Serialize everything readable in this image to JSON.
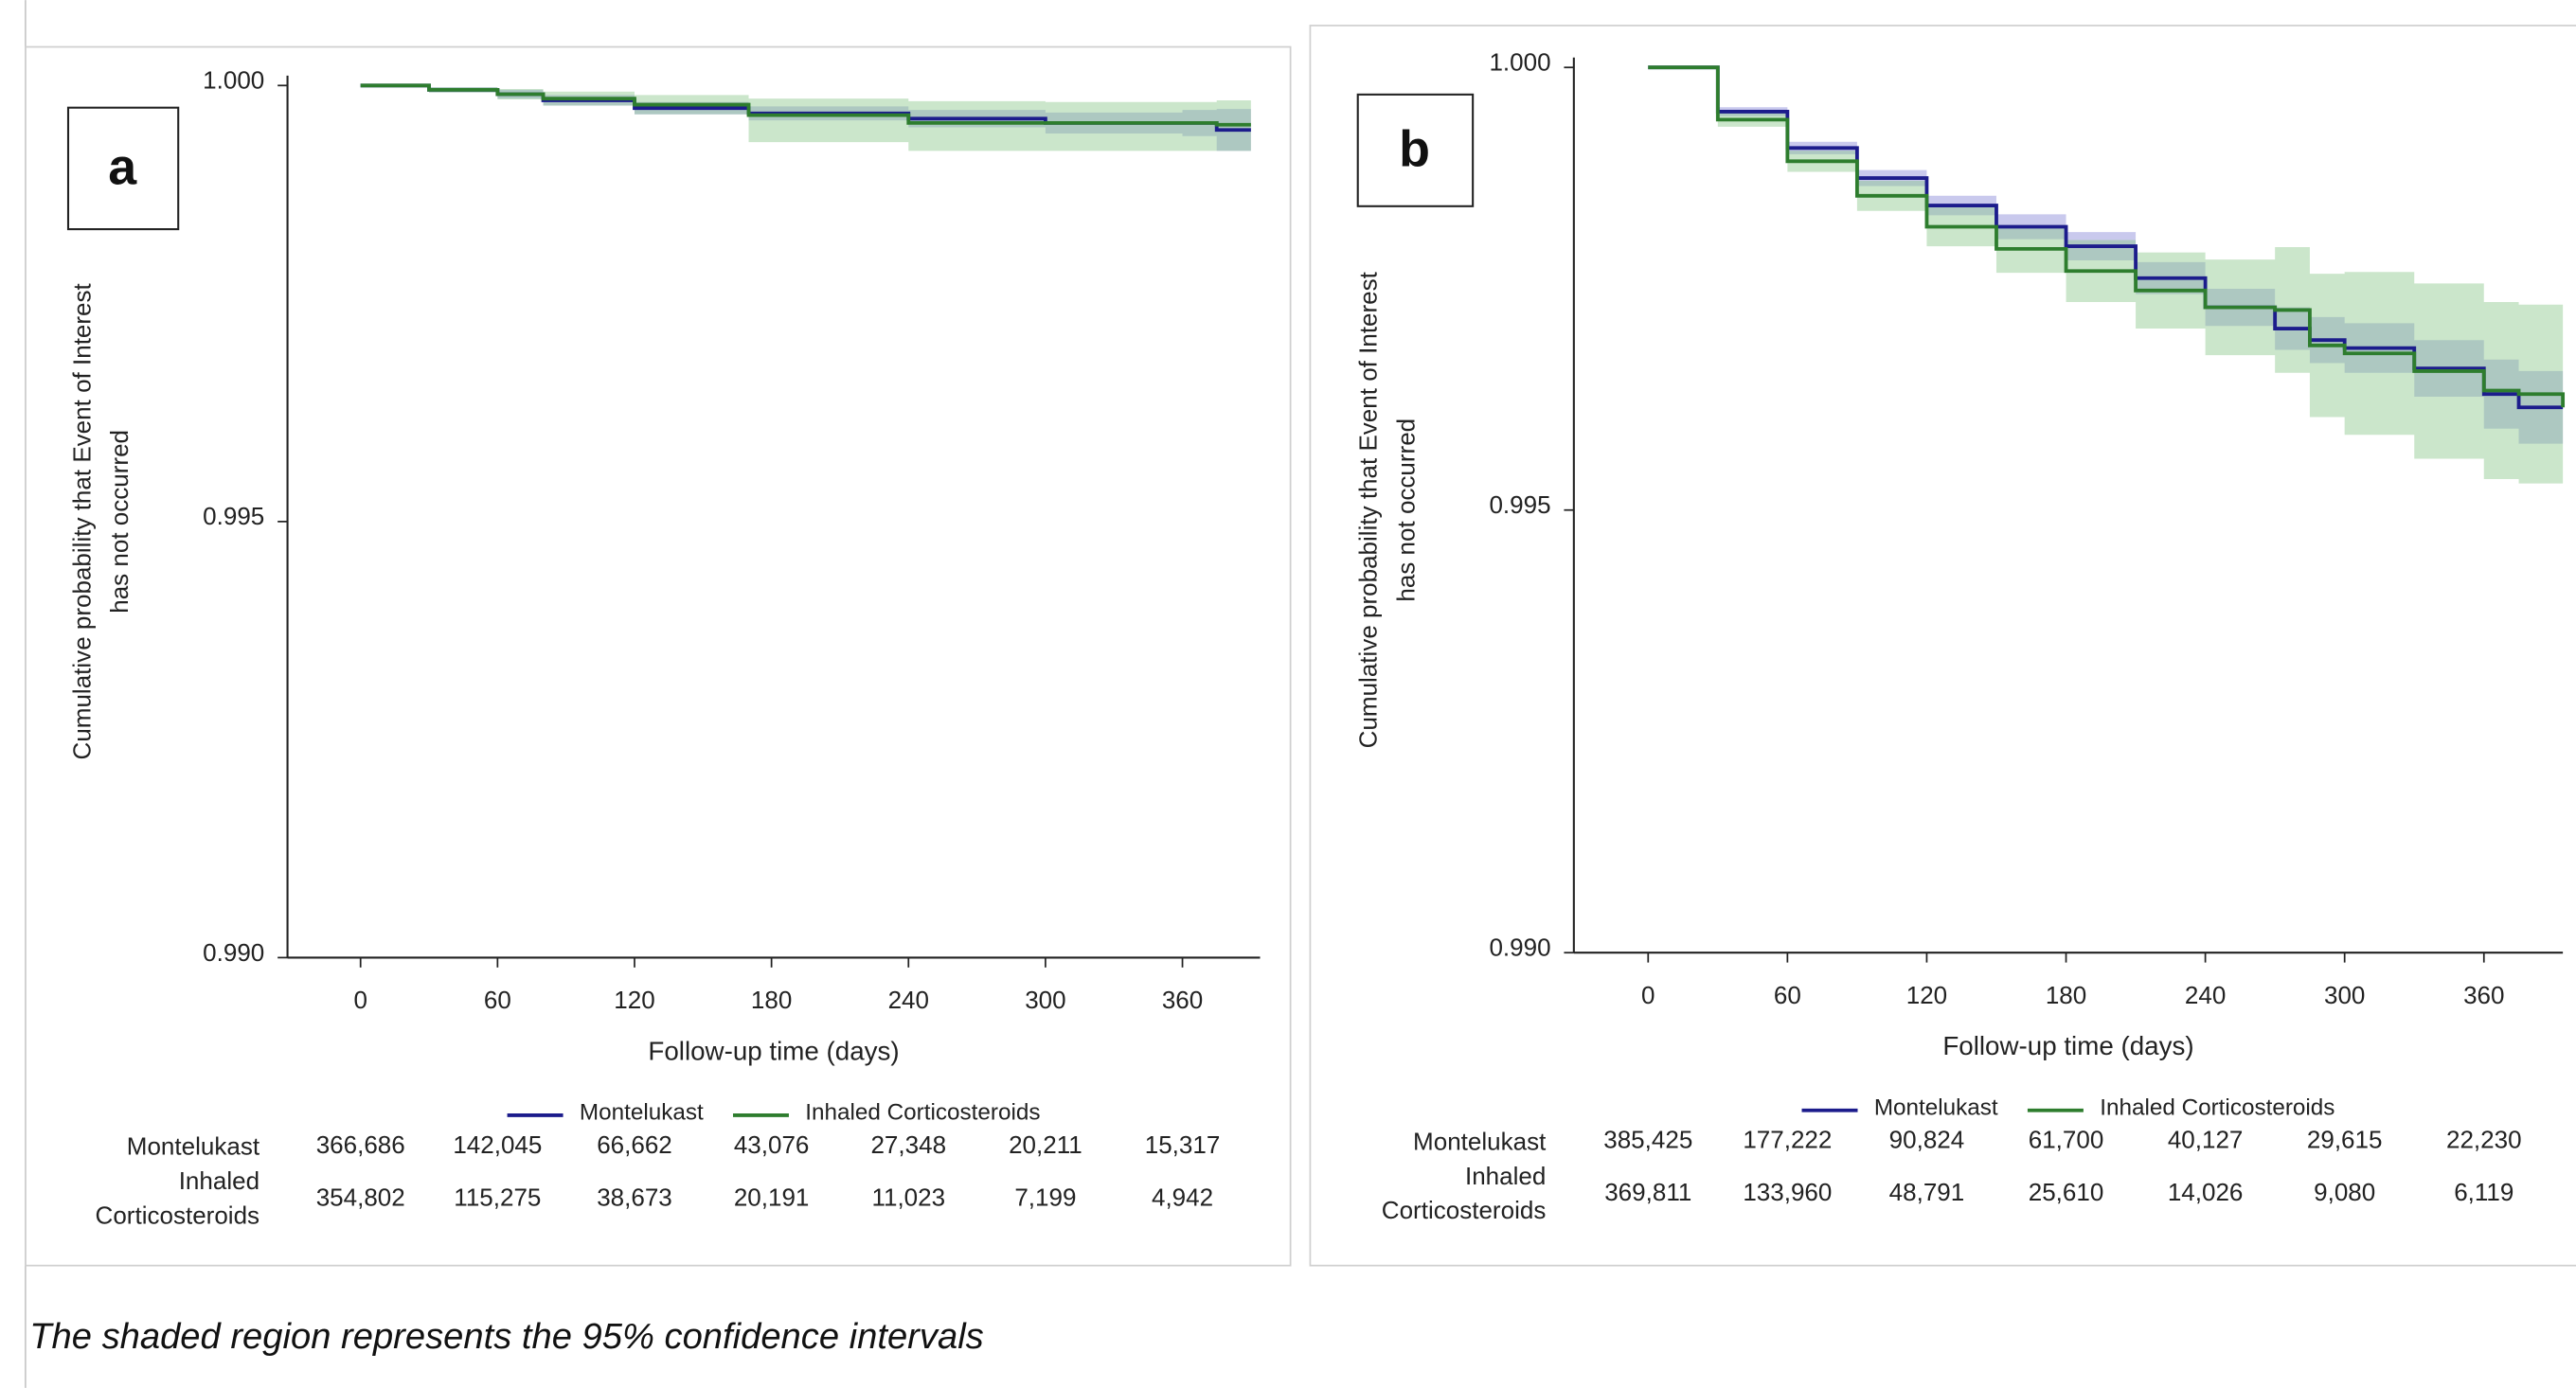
{
  "chart_data": [
    {
      "type": "line",
      "step": "post",
      "panel_label": "a",
      "xlabel": "Follow-up time (days)",
      "ylabel": [
        "Cumulative probability that Event of Interest",
        "has not occurred"
      ],
      "xlim": [
        -32,
        394
      ],
      "ylim": [
        0.99,
        1
      ],
      "xticks": [
        0,
        60,
        120,
        180,
        240,
        300,
        360
      ],
      "yticks": [
        {
          "value": 0.99,
          "label": "0.990"
        },
        0.995,
        {
          "value": 1,
          "label": "1.000"
        }
      ],
      "confidence_bands": true,
      "series": [
        {
          "name": "Montelukast",
          "color": "#1c1c8c",
          "band_color": "#8888d8",
          "x": [
            0,
            30,
            60,
            80,
            120,
            170,
            240,
            300,
            360,
            375,
            390
          ],
          "values": [
            1,
            0.99995,
            0.9999,
            0.99983,
            0.99974,
            0.99968,
            0.99962,
            0.99957,
            0.99957,
            0.99949,
            0.99949
          ],
          "ci_lower": [
            1,
            0.99992,
            0.99985,
            0.99977,
            0.99967,
            0.9996,
            0.99952,
            0.99945,
            0.99942,
            0.99925,
            0.99925
          ],
          "ci_upper": [
            1,
            0.99998,
            0.99995,
            0.99989,
            0.99981,
            0.99976,
            0.99972,
            0.99969,
            0.99972,
            0.99973,
            0.99973
          ]
        },
        {
          "name": "Inhaled Corticosteroids",
          "color": "#2e7d2e",
          "band_color": "#8cc88c",
          "x": [
            0,
            30,
            60,
            80,
            120,
            170,
            240,
            300,
            360,
            375,
            390
          ],
          "values": [
            1,
            0.99995,
            0.9999,
            0.99985,
            0.99978,
            0.99966,
            0.99957,
            0.99957,
            0.99957,
            0.99955,
            0.99955
          ],
          "ci_lower": [
            1,
            0.99992,
            0.99984,
            0.99977,
            0.99967,
            0.99935,
            0.99925,
            0.99925,
            0.99925,
            0.99925,
            0.99925
          ],
          "ci_upper": [
            1,
            0.99998,
            0.99996,
            0.99993,
            0.99989,
            0.99985,
            0.99982,
            0.99981,
            0.99981,
            0.99983,
            0.99983
          ]
        }
      ],
      "risk_table": {
        "rows": [
          {
            "label": "Montelukast",
            "counts": [
              "366,686",
              "142,045",
              "66,662",
              "43,076",
              "27,348",
              "20,211",
              "15,317"
            ]
          },
          {
            "label": "Inhaled Corticosteroids",
            "counts": [
              "354,802",
              "115,275",
              "38,673",
              "20,191",
              "11,023",
              "7,199",
              "4,942"
            ]
          }
        ]
      }
    },
    {
      "type": "line",
      "step": "post",
      "panel_label": "b",
      "xlabel": "Follow-up time (days)",
      "ylabel": [
        "Cumulative probability that Event of Interest",
        "has not occurred"
      ],
      "xlim": [
        -32,
        394
      ],
      "ylim": [
        0.99,
        1
      ],
      "xticks": [
        0,
        60,
        120,
        180,
        240,
        300,
        360
      ],
      "yticks": [
        {
          "value": 0.99,
          "label": "0.990"
        },
        0.995,
        {
          "value": 1,
          "label": "1.000"
        }
      ],
      "confidence_bands": true,
      "series": [
        {
          "name": "Montelukast",
          "color": "#1c1c8c",
          "band_color": "#8888d8",
          "x": [
            0,
            30,
            60,
            90,
            120,
            150,
            180,
            210,
            240,
            270,
            285,
            300,
            330,
            360,
            375,
            394
          ],
          "values": [
            1,
            0.9995,
            0.99909,
            0.99875,
            0.99844,
            0.9982,
            0.99798,
            0.99762,
            0.99729,
            0.99705,
            0.99692,
            0.99683,
            0.9966,
            0.99631,
            0.99616,
            0.99616
          ],
          "ci_lower": [
            1,
            0.99945,
            0.99902,
            0.99866,
            0.99833,
            0.99806,
            0.99782,
            0.99744,
            0.99708,
            0.99681,
            0.99666,
            0.99655,
            0.99628,
            0.99592,
            0.99575,
            0.99575
          ],
          "ci_upper": [
            1,
            0.99955,
            0.99916,
            0.99884,
            0.99855,
            0.99834,
            0.99814,
            0.9978,
            0.9975,
            0.99729,
            0.99718,
            0.99711,
            0.99692,
            0.9967,
            0.99657,
            0.99657
          ]
        },
        {
          "name": "Inhaled Corticosteroids",
          "color": "#2e7d2e",
          "band_color": "#8cc88c",
          "x": [
            0,
            30,
            60,
            90,
            120,
            150,
            180,
            210,
            240,
            270,
            285,
            300,
            330,
            360,
            375,
            394
          ],
          "values": [
            1,
            0.99941,
            0.99894,
            0.99855,
            0.9982,
            0.99795,
            0.9977,
            0.99748,
            0.99729,
            0.99726,
            0.99686,
            0.99677,
            0.99657,
            0.99635,
            0.99631,
            0.99616
          ],
          "ci_lower": [
            1,
            0.99933,
            0.99882,
            0.99838,
            0.99798,
            0.99768,
            0.99735,
            0.99705,
            0.99675,
            0.99655,
            0.99605,
            0.99585,
            0.99558,
            0.99535,
            0.9953,
            0.99505
          ],
          "ci_upper": [
            1,
            0.99949,
            0.99906,
            0.99872,
            0.99842,
            0.99822,
            0.99805,
            0.99791,
            0.99783,
            0.99797,
            0.99767,
            0.99769,
            0.99756,
            0.99735,
            0.99732,
            0.99727
          ]
        }
      ],
      "risk_table": {
        "rows": [
          {
            "label": "Montelukast",
            "counts": [
              "385,425",
              "177,222",
              "90,824",
              "61,700",
              "40,127",
              "29,615",
              "22,230"
            ]
          },
          {
            "label": "Inhaled Corticosteroids",
            "counts": [
              "369,811",
              "133,960",
              "48,791",
              "25,610",
              "14,026",
              "9,080",
              "6,119"
            ]
          }
        ]
      }
    }
  ],
  "caption": "The shaded region represents the 95% confidence intervals"
}
